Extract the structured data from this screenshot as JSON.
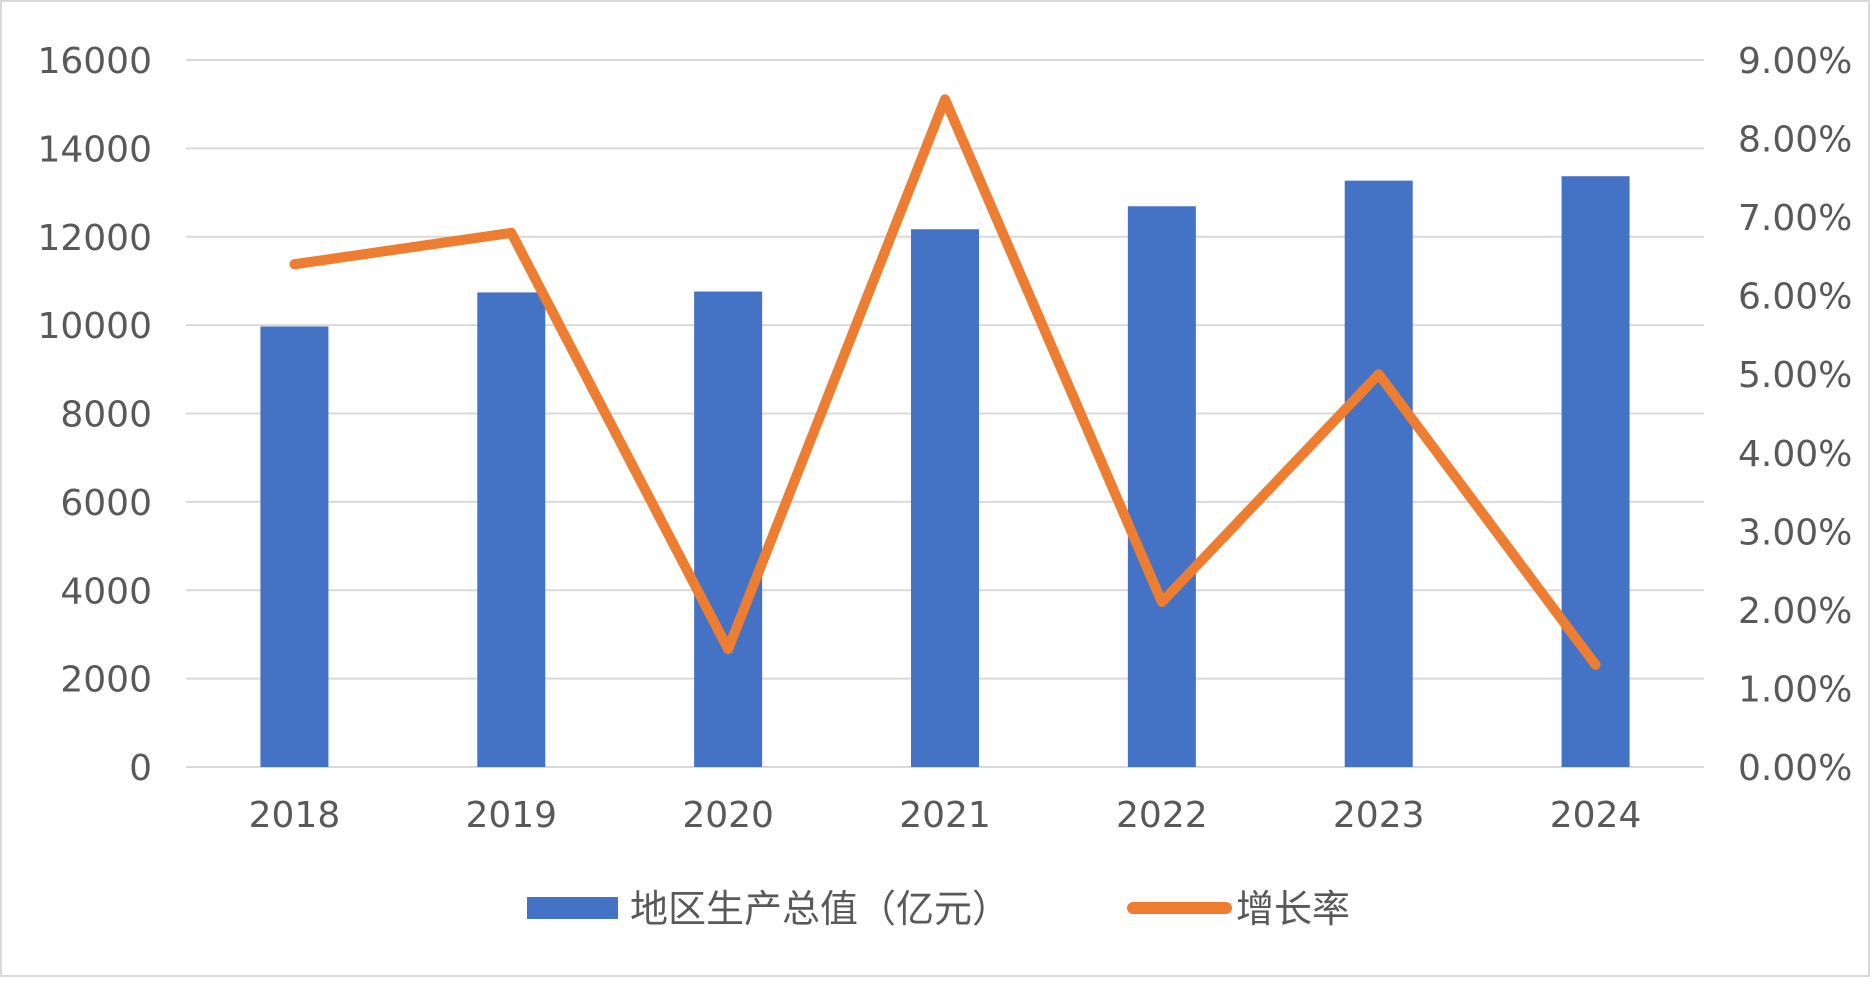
{
  "chart_data": {
    "type": "bar",
    "categories": [
      "2018",
      "2019",
      "2020",
      "2021",
      "2022",
      "2023",
      "2024"
    ],
    "series": [
      {
        "name": "地区生产总值（亿元）",
        "type": "bar",
        "axis": "left",
        "color": "#4472C4",
        "values": [
          9970,
          10740,
          10760,
          12170,
          12690,
          13270,
          13370
        ]
      },
      {
        "name": "增长率",
        "type": "line",
        "axis": "right",
        "color": "#ED7D31",
        "values": [
          0.064,
          0.068,
          0.015,
          0.085,
          0.021,
          0.05,
          0.013
        ]
      }
    ],
    "left_axis": {
      "ylim": [
        0,
        16000
      ],
      "ticks": [
        0,
        2000,
        4000,
        6000,
        8000,
        10000,
        12000,
        14000,
        16000
      ],
      "tick_labels": [
        "0",
        "2000",
        "4000",
        "6000",
        "8000",
        "10000",
        "12000",
        "14000",
        "16000"
      ]
    },
    "right_axis": {
      "ylim": [
        0,
        0.09
      ],
      "ticks": [
        0,
        0.01,
        0.02,
        0.03,
        0.04,
        0.05,
        0.06,
        0.07,
        0.08,
        0.09
      ],
      "tick_labels": [
        "0.00%",
        "1.00%",
        "2.00%",
        "3.00%",
        "4.00%",
        "5.00%",
        "6.00%",
        "7.00%",
        "8.00%",
        "9.00%"
      ]
    },
    "grid": true,
    "legend_position": "bottom",
    "title": "",
    "xlabel": "",
    "ylabel": ""
  }
}
